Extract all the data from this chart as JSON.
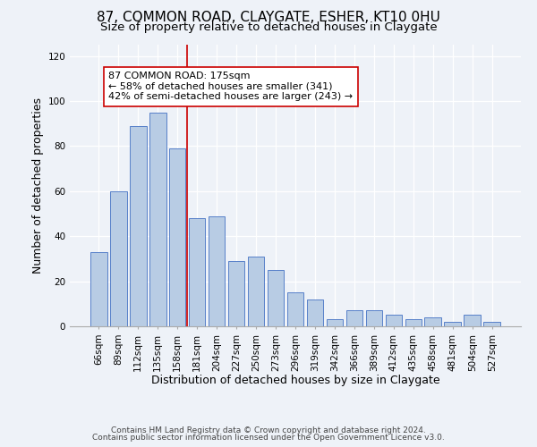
{
  "title": "87, COMMON ROAD, CLAYGATE, ESHER, KT10 0HU",
  "subtitle": "Size of property relative to detached houses in Claygate",
  "xlabel": "Distribution of detached houses by size in Claygate",
  "ylabel": "Number of detached properties",
  "bar_labels": [
    "66sqm",
    "89sqm",
    "112sqm",
    "135sqm",
    "158sqm",
    "181sqm",
    "204sqm",
    "227sqm",
    "250sqm",
    "273sqm",
    "296sqm",
    "319sqm",
    "342sqm",
    "366sqm",
    "389sqm",
    "412sqm",
    "435sqm",
    "458sqm",
    "481sqm",
    "504sqm",
    "527sqm"
  ],
  "bar_values": [
    33,
    60,
    89,
    95,
    79,
    48,
    49,
    29,
    31,
    25,
    15,
    12,
    3,
    7,
    7,
    5,
    3,
    4,
    2,
    5,
    2
  ],
  "bar_color": "#b8cce4",
  "bar_edge_color": "#4472c4",
  "vline_bar_index": 5,
  "vline_color": "#cc0000",
  "annotation_line1": "87 COMMON ROAD: 175sqm",
  "annotation_line2": "← 58% of detached houses are smaller (341)",
  "annotation_line3": "42% of semi-detached houses are larger (243) →",
  "annotation_box_color": "white",
  "annotation_box_edge_color": "#cc0000",
  "ylim": [
    0,
    125
  ],
  "yticks": [
    0,
    20,
    40,
    60,
    80,
    100,
    120
  ],
  "footer_line1": "Contains HM Land Registry data © Crown copyright and database right 2024.",
  "footer_line2": "Contains public sector information licensed under the Open Government Licence v3.0.",
  "background_color": "#eef2f8",
  "plot_bg_color": "#eef2f8",
  "title_fontsize": 11,
  "subtitle_fontsize": 9.5,
  "axis_label_fontsize": 9,
  "tick_fontsize": 7.5,
  "annotation_fontsize": 8,
  "footer_fontsize": 6.5
}
